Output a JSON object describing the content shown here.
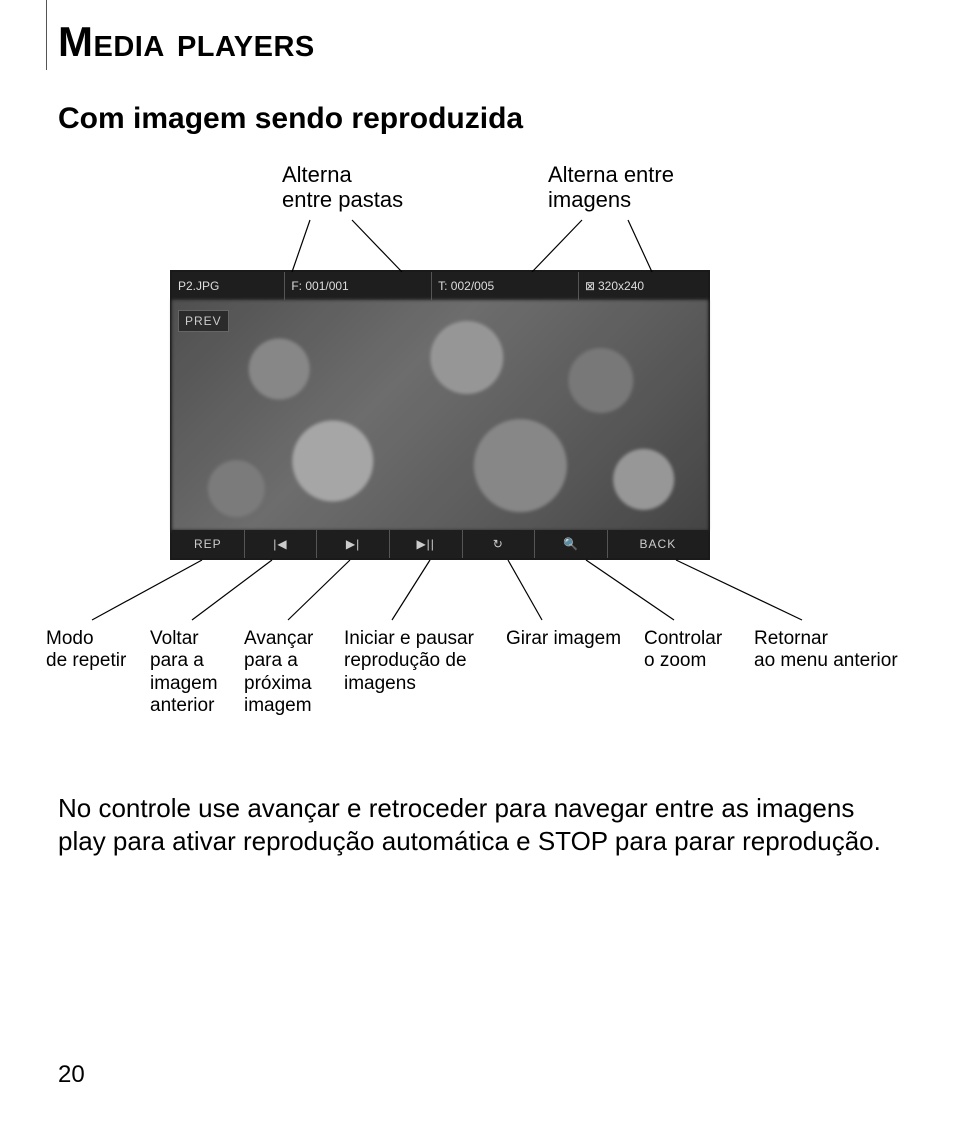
{
  "title": "Media players",
  "subtitle": "Com imagem sendo reproduzida",
  "topLabels": {
    "left": "Alterna\nentre pastas",
    "right": "Alterna entre\nimagens"
  },
  "screenshot": {
    "topbar": {
      "filename": "P2.JPG",
      "folder": "F: 001/001",
      "index": "T: 002/005",
      "res": "320x240"
    },
    "prev": "PREV",
    "bottombar": {
      "rep": "REP",
      "prevIcon": "|◀",
      "nextIcon": "▶|",
      "playIcon": "▶||",
      "rotateIcon": "↻",
      "zoomIcon": "🔍",
      "back": "BACK"
    }
  },
  "bottomLabels": {
    "c0": "Modo\nde repetir",
    "c1": "Voltar\npara a\nimagem\nanterior",
    "c2": "Avançar\npara a\npróxima\nimagem",
    "c3": "Iniciar e pausar\nreprodução de\nimagens",
    "c4": "Girar imagem",
    "c5": "Controlar\no zoom",
    "c6": "Retornar\nao menu anterior"
  },
  "bodyText": "No controle use avançar e retroceder para navegar entre as imagens play para ativar reprodução automática e STOP para parar reprodução.",
  "pageNumber": "20",
  "colors": {
    "text": "#000000",
    "line": "#000000",
    "bg": "#ffffff"
  }
}
